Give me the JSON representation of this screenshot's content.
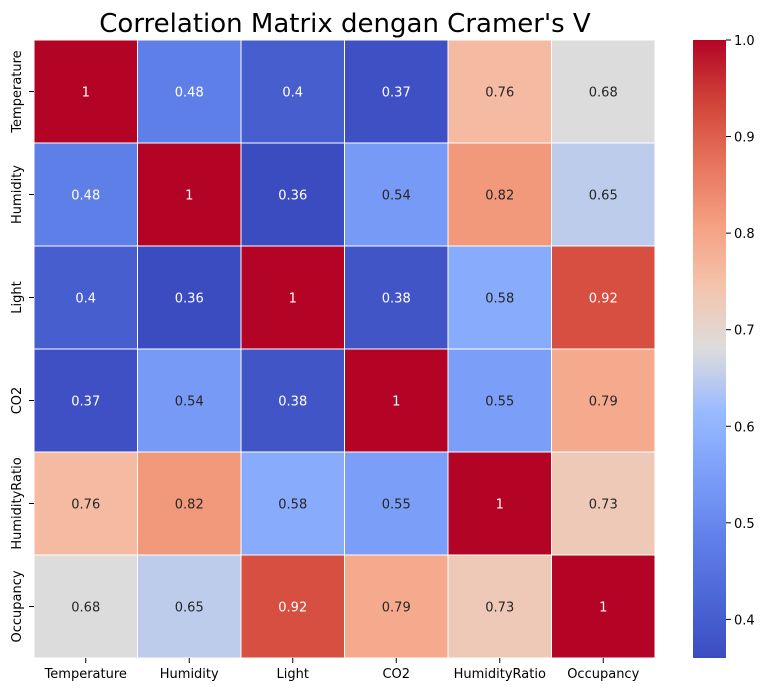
{
  "chart_data": {
    "type": "heatmap",
    "title": "Correlation Matrix dengan Cramer's V",
    "xlabel": "",
    "ylabel": "",
    "row_labels": [
      "Temperature",
      "Humidity",
      "Light",
      "CO2",
      "HumidityRatio",
      "Occupancy"
    ],
    "col_labels": [
      "Temperature",
      "Humidity",
      "Light",
      "CO2",
      "HumidityRatio",
      "Occupancy"
    ],
    "values": [
      [
        1,
        0.48,
        0.4,
        0.37,
        0.76,
        0.68
      ],
      [
        0.48,
        1,
        0.36,
        0.54,
        0.82,
        0.65
      ],
      [
        0.4,
        0.36,
        1,
        0.38,
        0.58,
        0.92
      ],
      [
        0.37,
        0.54,
        0.38,
        1,
        0.55,
        0.79
      ],
      [
        0.76,
        0.82,
        0.58,
        0.55,
        1,
        0.73
      ],
      [
        0.68,
        0.65,
        0.92,
        0.79,
        0.73,
        1
      ]
    ],
    "annotations": [
      [
        "1",
        "0.48",
        "0.4",
        "0.37",
        "0.76",
        "0.68"
      ],
      [
        "0.48",
        "1",
        "0.36",
        "0.54",
        "0.82",
        "0.65"
      ],
      [
        "0.4",
        "0.36",
        "1",
        "0.38",
        "0.58",
        "0.92"
      ],
      [
        "0.37",
        "0.54",
        "0.38",
        "1",
        "0.55",
        "0.79"
      ],
      [
        "0.76",
        "0.82",
        "0.58",
        "0.55",
        "1",
        "0.73"
      ],
      [
        "0.68",
        "0.65",
        "0.92",
        "0.79",
        "0.73",
        "1"
      ]
    ],
    "colormap": "coolwarm",
    "vmin": 0.36,
    "vmax": 1.0,
    "colorbar": {
      "ticks": [
        0.4,
        0.5,
        0.6,
        0.7,
        0.8,
        0.9,
        1.0
      ],
      "tick_labels": [
        "0.4",
        "0.5",
        "0.6",
        "0.7",
        "0.8",
        "0.9",
        "1.0"
      ],
      "position": "right"
    },
    "grid_lines_color": "#ffffff"
  }
}
